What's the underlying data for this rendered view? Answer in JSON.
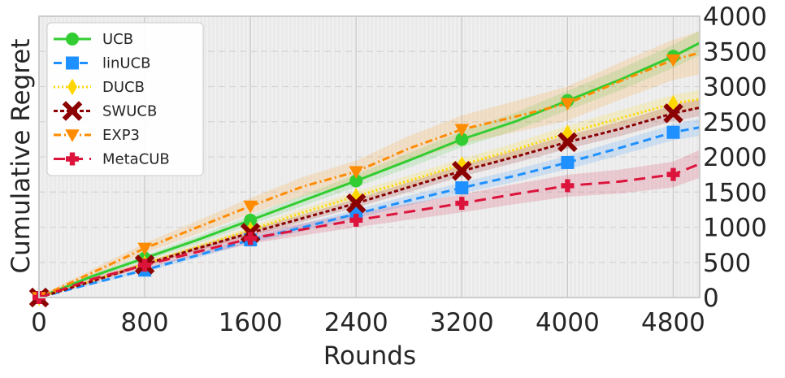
{
  "chart_data": {
    "type": "line",
    "xlabel": "Rounds",
    "ylabel": "Cumulative Regret",
    "xlim": [
      0,
      5000
    ],
    "ylim": [
      0,
      4000
    ],
    "xticks": [
      0,
      800,
      1600,
      2400,
      3200,
      4000,
      4800
    ],
    "yticks": [
      0,
      500,
      1000,
      1500,
      2000,
      2500,
      3000,
      3500,
      4000
    ],
    "y_axis_side": "right",
    "grid": true,
    "legend_position": "top-left",
    "x": [
      0,
      400,
      800,
      1200,
      1600,
      2000,
      2400,
      2800,
      3200,
      3600,
      4000,
      4400,
      4800,
      5000
    ],
    "series": [
      {
        "name": "UCB",
        "color": "#32cd32",
        "linestyle": "solid",
        "marker": "circle",
        "values": [
          0,
          300,
          560,
          820,
          1100,
          1380,
          1660,
          1950,
          2250,
          2500,
          2800,
          3100,
          3430,
          3620
        ],
        "band": 160
      },
      {
        "name": "linUCB",
        "color": "#1e90ff",
        "linestyle": "dashed",
        "marker": "square",
        "values": [
          0,
          200,
          390,
          600,
          820,
          1000,
          1190,
          1380,
          1560,
          1730,
          1920,
          2130,
          2350,
          2420
        ],
        "band": 110
      },
      {
        "name": "DUCB",
        "color": "#ffd700",
        "linestyle": "dotted",
        "marker": "diamond",
        "values": [
          0,
          240,
          480,
          720,
          960,
          1210,
          1440,
          1660,
          1890,
          2100,
          2340,
          2550,
          2760,
          2820
        ],
        "band": 120
      },
      {
        "name": "SWUCB",
        "color": "#8b0000",
        "linestyle": "densely-dashed",
        "marker": "x",
        "values": [
          0,
          230,
          470,
          700,
          920,
          1130,
          1340,
          1570,
          1800,
          2000,
          2210,
          2400,
          2620,
          2700
        ],
        "band": 110
      },
      {
        "name": "EXP3",
        "color": "#ff8c00",
        "linestyle": "dashdot",
        "marker": "triangle-down",
        "values": [
          0,
          350,
          700,
          1000,
          1300,
          1580,
          1790,
          2120,
          2390,
          2570,
          2760,
          3080,
          3380,
          3480
        ],
        "band": 280
      },
      {
        "name": "MetaCUB",
        "color": "#dc143c",
        "linestyle": "long-dashed",
        "marker": "plus",
        "values": [
          0,
          260,
          460,
          650,
          840,
          970,
          1100,
          1220,
          1340,
          1470,
          1590,
          1650,
          1750,
          1900
        ],
        "band": 180
      }
    ]
  }
}
